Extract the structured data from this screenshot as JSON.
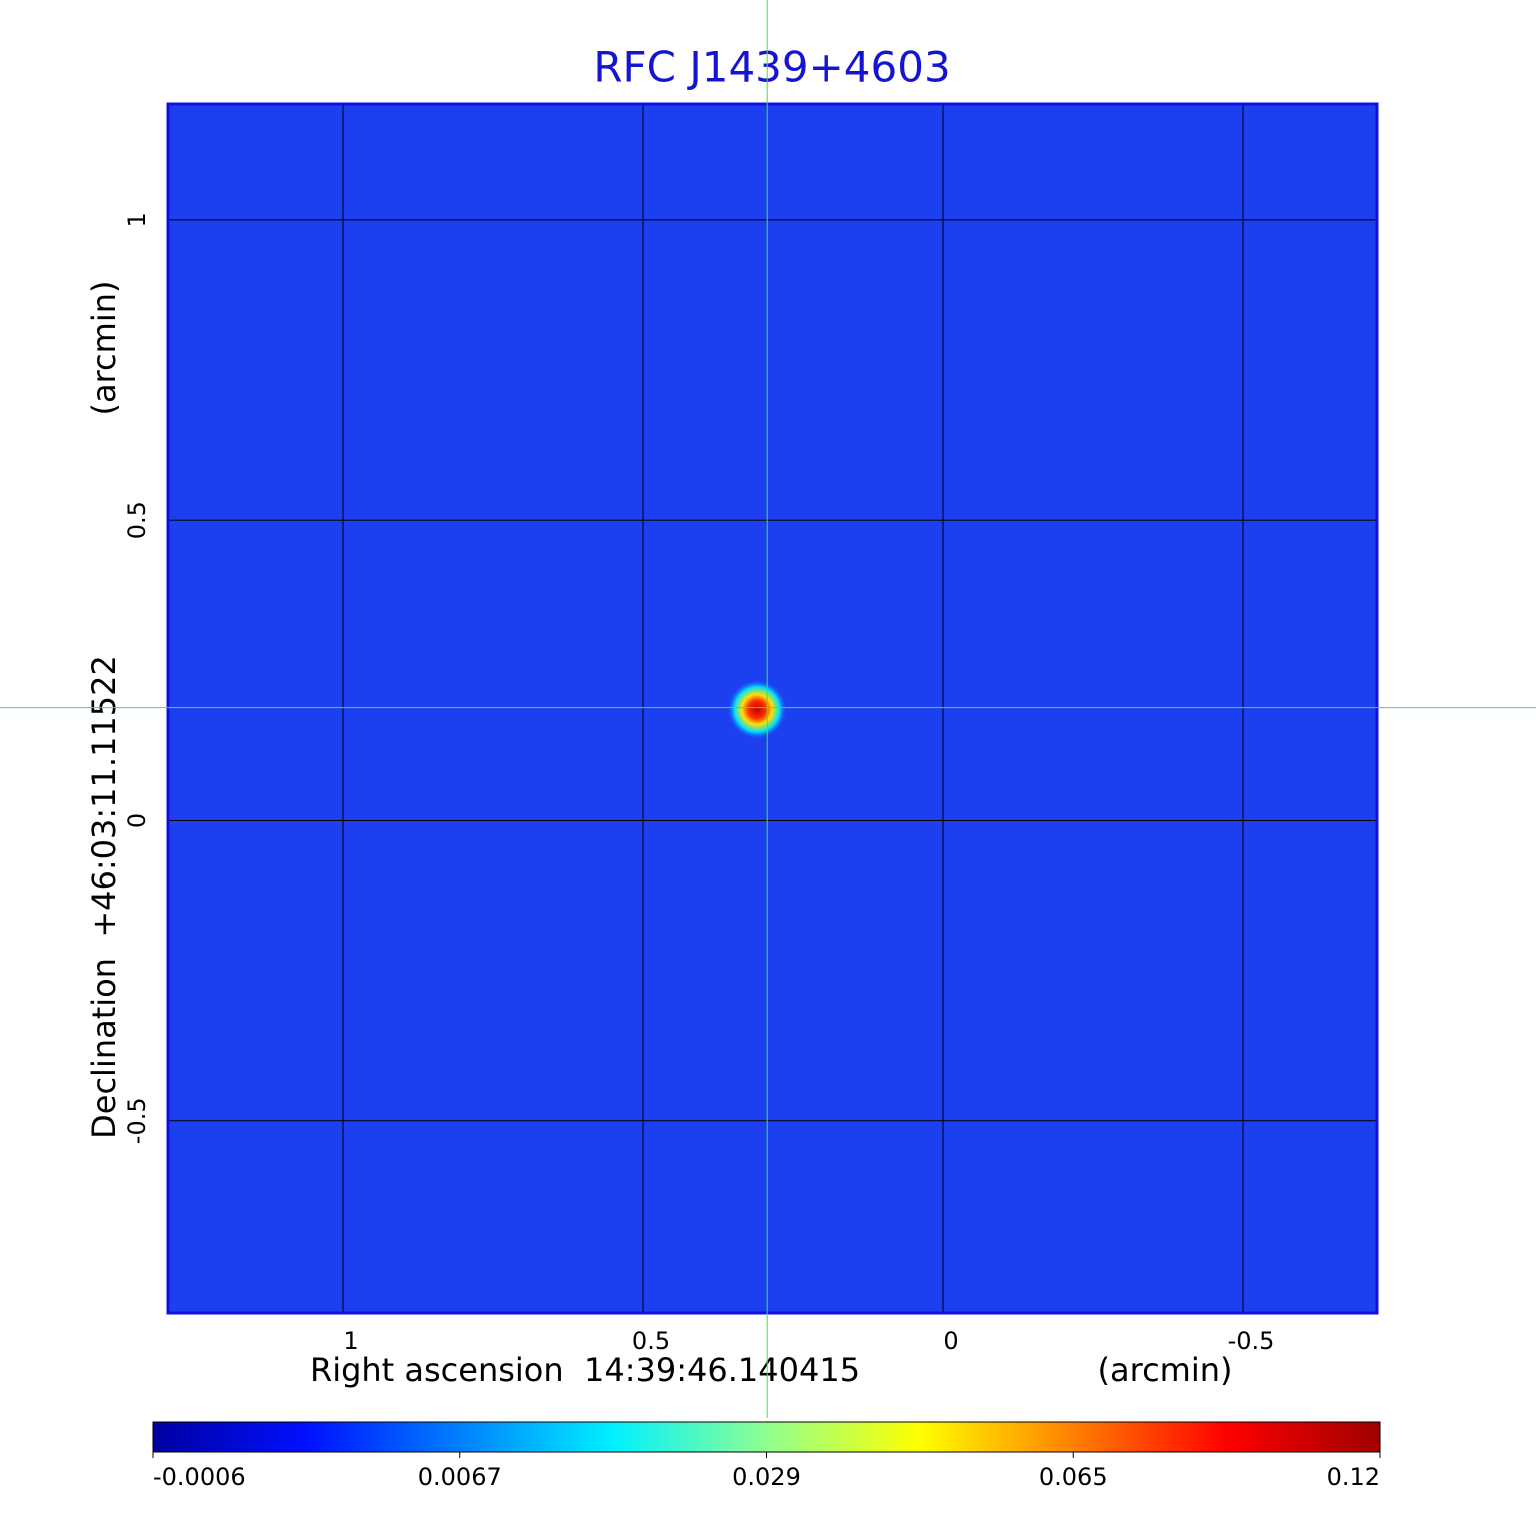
{
  "chart_data": {
    "type": "image",
    "title": "RFC J1439+4603",
    "x_label": "Right ascension  14:39:46.140415",
    "x_unit": "(arcmin)",
    "y_label": "Declination  +46:03:11.11522",
    "y_unit": "(arcmin)",
    "xlim": [
      1.2917,
      -0.7233
    ],
    "ylim": [
      -0.82,
      1.193
    ],
    "xticks": [
      1.0,
      0.5,
      0.0,
      -0.5
    ],
    "yticks": [
      -0.5,
      0.0,
      0.5,
      1.0
    ],
    "grid": true,
    "background_color": "#1c3ff0",
    "source": {
      "x": 0.31,
      "y": 0.185,
      "peak": 0.12
    },
    "crosshair": {
      "x": 0.293,
      "y": 0.188,
      "color": "#33ee33"
    },
    "colorbar": {
      "ticks": [
        -0.0006,
        0.0067,
        0.029,
        0.065,
        0.12
      ],
      "colors": [
        "#0000a0",
        "#0010ff",
        "#0080ff",
        "#00f0ff",
        "#90ff90",
        "#ffff00",
        "#ff8000",
        "#ff0000",
        "#a00000"
      ]
    }
  }
}
